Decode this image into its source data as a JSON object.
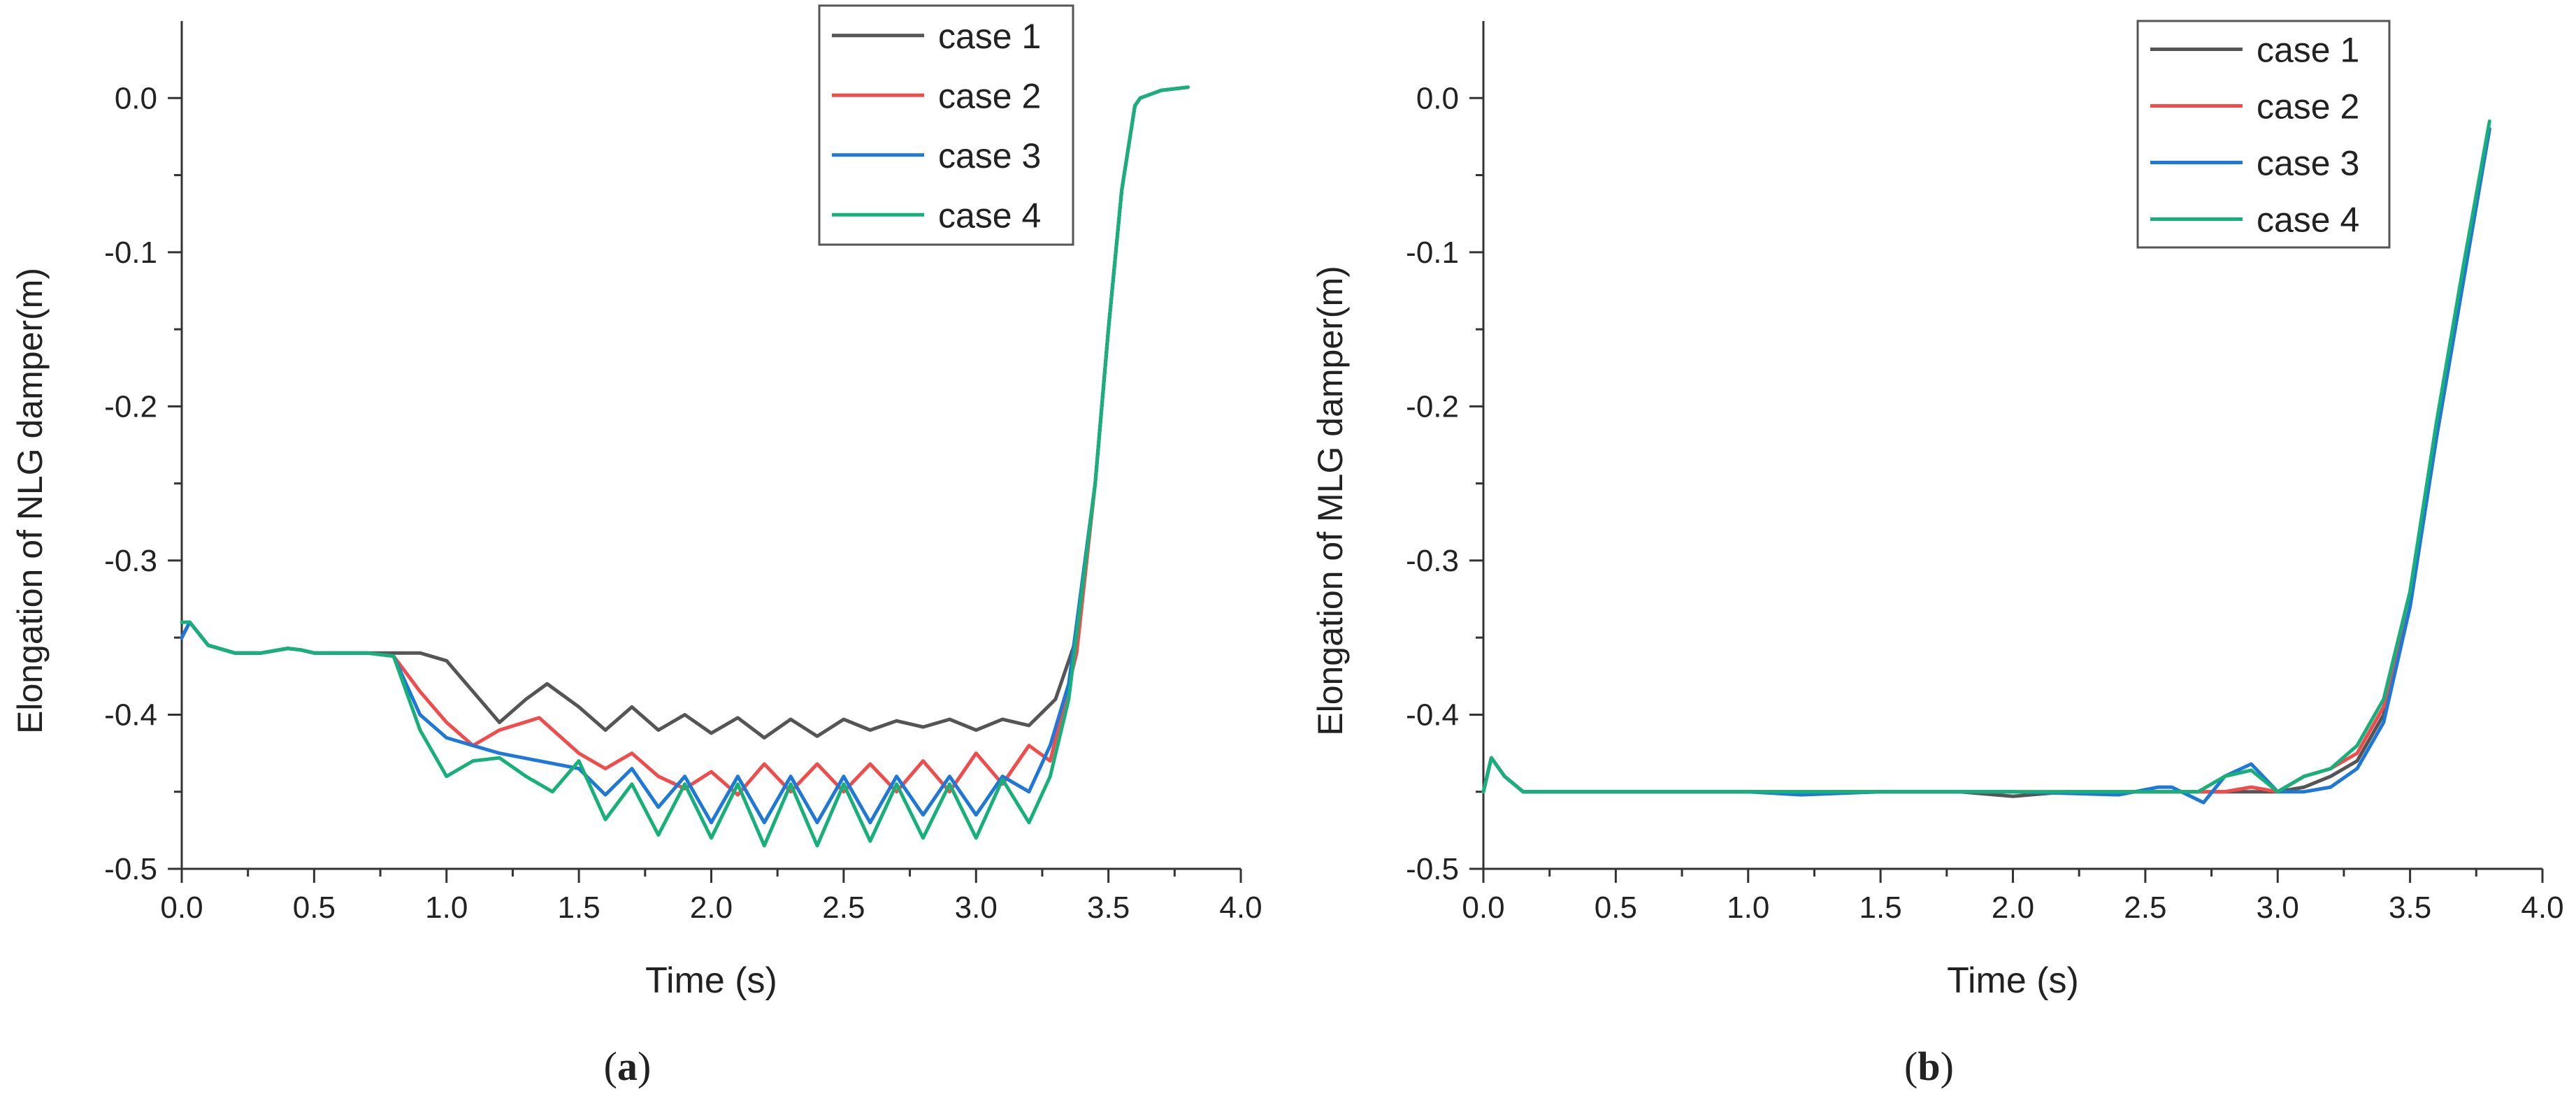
{
  "chart_data": [
    {
      "type": "line",
      "panel_label": "(a)",
      "panel_letter": "a",
      "title": "",
      "xlabel": "Time (s)",
      "ylabel": "Elongation of NLG damper(m)",
      "xlim": [
        0.0,
        4.0
      ],
      "ylim": [
        -0.5,
        0.05
      ],
      "x_ticks": [
        0.0,
        0.5,
        1.0,
        1.5,
        2.0,
        2.5,
        3.0,
        3.5,
        4.0
      ],
      "x_tick_labels": [
        "0.0",
        "0.5",
        "1.0",
        "1.5",
        "2.0",
        "2.5",
        "3.0",
        "3.5",
        "4.0"
      ],
      "y_ticks": [
        0.0,
        -0.1,
        -0.2,
        -0.3,
        -0.4,
        -0.5
      ],
      "y_tick_labels": [
        "0.0",
        "-0.1",
        "-0.2",
        "-0.3",
        "-0.4",
        "-0.5"
      ],
      "legend": "top-right",
      "grid": false,
      "series": [
        {
          "name": "case 1",
          "color": "#555555",
          "x": [
            0,
            0.03,
            0.1,
            0.2,
            0.3,
            0.4,
            0.45,
            0.5,
            0.6,
            0.7,
            0.8,
            0.9,
            1.0,
            1.1,
            1.2,
            1.3,
            1.38,
            1.5,
            1.6,
            1.7,
            1.8,
            1.9,
            2.0,
            2.1,
            2.2,
            2.3,
            2.4,
            2.5,
            2.6,
            2.7,
            2.8,
            2.9,
            3.0,
            3.1,
            3.2,
            3.3,
            3.38,
            3.45,
            3.5,
            3.55,
            3.6,
            3.62,
            3.7,
            3.8
          ],
          "values": [
            -0.35,
            -0.34,
            -0.355,
            -0.36,
            -0.36,
            -0.357,
            -0.358,
            -0.36,
            -0.36,
            -0.36,
            -0.36,
            -0.36,
            -0.365,
            -0.385,
            -0.405,
            -0.39,
            -0.38,
            -0.395,
            -0.41,
            -0.395,
            -0.41,
            -0.4,
            -0.412,
            -0.402,
            -0.415,
            -0.403,
            -0.414,
            -0.403,
            -0.41,
            -0.404,
            -0.408,
            -0.403,
            -0.41,
            -0.403,
            -0.407,
            -0.39,
            -0.35,
            -0.25,
            -0.15,
            -0.06,
            -0.005,
            0.0,
            0.005,
            0.007
          ]
        },
        {
          "name": "case 2",
          "color": "#f04c4c",
          "x": [
            0,
            0.03,
            0.1,
            0.2,
            0.3,
            0.4,
            0.45,
            0.5,
            0.6,
            0.7,
            0.8,
            0.9,
            1.0,
            1.1,
            1.2,
            1.35,
            1.5,
            1.6,
            1.7,
            1.8,
            1.9,
            2.0,
            2.1,
            2.2,
            2.3,
            2.4,
            2.5,
            2.6,
            2.7,
            2.8,
            2.9,
            3.0,
            3.1,
            3.2,
            3.28,
            3.38,
            3.45,
            3.5,
            3.55,
            3.6,
            3.62,
            3.7,
            3.8
          ],
          "values": [
            -0.35,
            -0.34,
            -0.355,
            -0.36,
            -0.36,
            -0.357,
            -0.358,
            -0.36,
            -0.36,
            -0.36,
            -0.362,
            -0.385,
            -0.405,
            -0.42,
            -0.41,
            -0.402,
            -0.425,
            -0.435,
            -0.425,
            -0.44,
            -0.448,
            -0.437,
            -0.452,
            -0.432,
            -0.45,
            -0.432,
            -0.45,
            -0.432,
            -0.45,
            -0.43,
            -0.45,
            -0.425,
            -0.445,
            -0.42,
            -0.43,
            -0.36,
            -0.25,
            -0.15,
            -0.06,
            -0.005,
            0.0,
            0.005,
            0.007
          ]
        },
        {
          "name": "case 3",
          "color": "#1e78d8",
          "x": [
            0,
            0.03,
            0.1,
            0.2,
            0.3,
            0.4,
            0.45,
            0.5,
            0.6,
            0.7,
            0.8,
            0.9,
            1.0,
            1.1,
            1.2,
            1.35,
            1.5,
            1.6,
            1.7,
            1.8,
            1.9,
            2.0,
            2.1,
            2.2,
            2.3,
            2.4,
            2.5,
            2.6,
            2.7,
            2.8,
            2.9,
            3.0,
            3.1,
            3.2,
            3.28,
            3.35,
            3.45,
            3.5,
            3.55,
            3.6,
            3.62,
            3.7,
            3.8
          ],
          "values": [
            -0.35,
            -0.34,
            -0.355,
            -0.36,
            -0.36,
            -0.357,
            -0.358,
            -0.36,
            -0.36,
            -0.36,
            -0.362,
            -0.4,
            -0.415,
            -0.42,
            -0.425,
            -0.43,
            -0.435,
            -0.452,
            -0.435,
            -0.46,
            -0.44,
            -0.47,
            -0.44,
            -0.47,
            -0.44,
            -0.47,
            -0.44,
            -0.47,
            -0.44,
            -0.465,
            -0.44,
            -0.465,
            -0.44,
            -0.45,
            -0.42,
            -0.38,
            -0.25,
            -0.15,
            -0.06,
            -0.005,
            0.0,
            0.005,
            0.007
          ]
        },
        {
          "name": "case 4",
          "color": "#18b07a",
          "x": [
            0,
            0.03,
            0.1,
            0.2,
            0.3,
            0.4,
            0.45,
            0.5,
            0.6,
            0.7,
            0.8,
            0.9,
            1.0,
            1.1,
            1.2,
            1.3,
            1.4,
            1.5,
            1.6,
            1.7,
            1.8,
            1.9,
            2.0,
            2.1,
            2.2,
            2.3,
            2.4,
            2.5,
            2.6,
            2.7,
            2.8,
            2.9,
            3.0,
            3.1,
            3.2,
            3.28,
            3.35,
            3.45,
            3.5,
            3.55,
            3.6,
            3.62,
            3.7,
            3.8
          ],
          "values": [
            -0.34,
            -0.34,
            -0.355,
            -0.36,
            -0.36,
            -0.357,
            -0.358,
            -0.36,
            -0.36,
            -0.36,
            -0.362,
            -0.41,
            -0.44,
            -0.43,
            -0.428,
            -0.44,
            -0.45,
            -0.43,
            -0.468,
            -0.445,
            -0.478,
            -0.445,
            -0.48,
            -0.445,
            -0.485,
            -0.445,
            -0.485,
            -0.445,
            -0.482,
            -0.445,
            -0.48,
            -0.445,
            -0.48,
            -0.442,
            -0.47,
            -0.44,
            -0.39,
            -0.25,
            -0.15,
            -0.06,
            -0.005,
            0.0,
            0.005,
            0.007
          ]
        }
      ]
    },
    {
      "type": "line",
      "panel_label": "(b)",
      "panel_letter": "b",
      "title": "",
      "xlabel": "Time (s)",
      "ylabel": "Elongation of MLG damper(m)",
      "xlim": [
        0.0,
        4.0
      ],
      "ylim": [
        -0.5,
        0.05
      ],
      "x_ticks": [
        0.0,
        0.5,
        1.0,
        1.5,
        2.0,
        2.5,
        3.0,
        3.5,
        4.0
      ],
      "x_tick_labels": [
        "0.0",
        "0.5",
        "1.0",
        "1.5",
        "2.0",
        "2.5",
        "3.0",
        "3.5",
        "4.0"
      ],
      "y_ticks": [
        0.0,
        -0.1,
        -0.2,
        -0.3,
        -0.4,
        -0.5
      ],
      "y_tick_labels": [
        "0.0",
        "-0.1",
        "-0.2",
        "-0.3",
        "-0.4",
        "-0.5"
      ],
      "legend": "top-right",
      "grid": false,
      "series": [
        {
          "name": "case 1",
          "color": "#555555",
          "x": [
            0,
            0.03,
            0.08,
            0.15,
            0.2,
            0.5,
            1.0,
            1.5,
            1.8,
            2.0,
            2.2,
            2.5,
            2.8,
            3.0,
            3.1,
            3.2,
            3.3,
            3.4,
            3.5,
            3.6,
            3.7,
            3.8
          ],
          "values": [
            -0.45,
            -0.428,
            -0.44,
            -0.45,
            -0.45,
            -0.45,
            -0.45,
            -0.45,
            -0.45,
            -0.453,
            -0.45,
            -0.45,
            -0.45,
            -0.45,
            -0.447,
            -0.44,
            -0.43,
            -0.4,
            -0.33,
            -0.22,
            -0.12,
            -0.02
          ]
        },
        {
          "name": "case 2",
          "color": "#f04c4c",
          "x": [
            0,
            0.03,
            0.08,
            0.15,
            0.2,
            0.5,
            1.0,
            1.5,
            2.0,
            2.5,
            2.8,
            2.9,
            3.0,
            3.1,
            3.2,
            3.3,
            3.4,
            3.5,
            3.6,
            3.7,
            3.8
          ],
          "values": [
            -0.45,
            -0.428,
            -0.44,
            -0.45,
            -0.45,
            -0.45,
            -0.45,
            -0.45,
            -0.45,
            -0.45,
            -0.45,
            -0.447,
            -0.45,
            -0.44,
            -0.435,
            -0.425,
            -0.395,
            -0.33,
            -0.22,
            -0.12,
            -0.02
          ]
        },
        {
          "name": "case 3",
          "color": "#1e78d8",
          "x": [
            0,
            0.03,
            0.08,
            0.15,
            0.2,
            0.5,
            1.0,
            1.2,
            1.5,
            2.0,
            2.4,
            2.55,
            2.6,
            2.72,
            2.8,
            2.9,
            3.0,
            3.1,
            3.2,
            3.3,
            3.4,
            3.5,
            3.6,
            3.7,
            3.8
          ],
          "values": [
            -0.45,
            -0.428,
            -0.44,
            -0.45,
            -0.45,
            -0.45,
            -0.45,
            -0.452,
            -0.45,
            -0.45,
            -0.452,
            -0.447,
            -0.447,
            -0.457,
            -0.44,
            -0.432,
            -0.45,
            -0.45,
            -0.447,
            -0.435,
            -0.405,
            -0.33,
            -0.22,
            -0.12,
            -0.02
          ]
        },
        {
          "name": "case 4",
          "color": "#18b07a",
          "x": [
            0,
            0.03,
            0.08,
            0.15,
            0.2,
            0.5,
            1.0,
            1.5,
            2.0,
            2.5,
            2.7,
            2.8,
            2.9,
            3.0,
            3.1,
            3.2,
            3.3,
            3.4,
            3.5,
            3.6,
            3.7,
            3.8
          ],
          "values": [
            -0.45,
            -0.428,
            -0.44,
            -0.45,
            -0.45,
            -0.45,
            -0.45,
            -0.45,
            -0.45,
            -0.45,
            -0.45,
            -0.44,
            -0.436,
            -0.45,
            -0.44,
            -0.435,
            -0.42,
            -0.39,
            -0.32,
            -0.21,
            -0.11,
            -0.015
          ]
        }
      ]
    }
  ]
}
